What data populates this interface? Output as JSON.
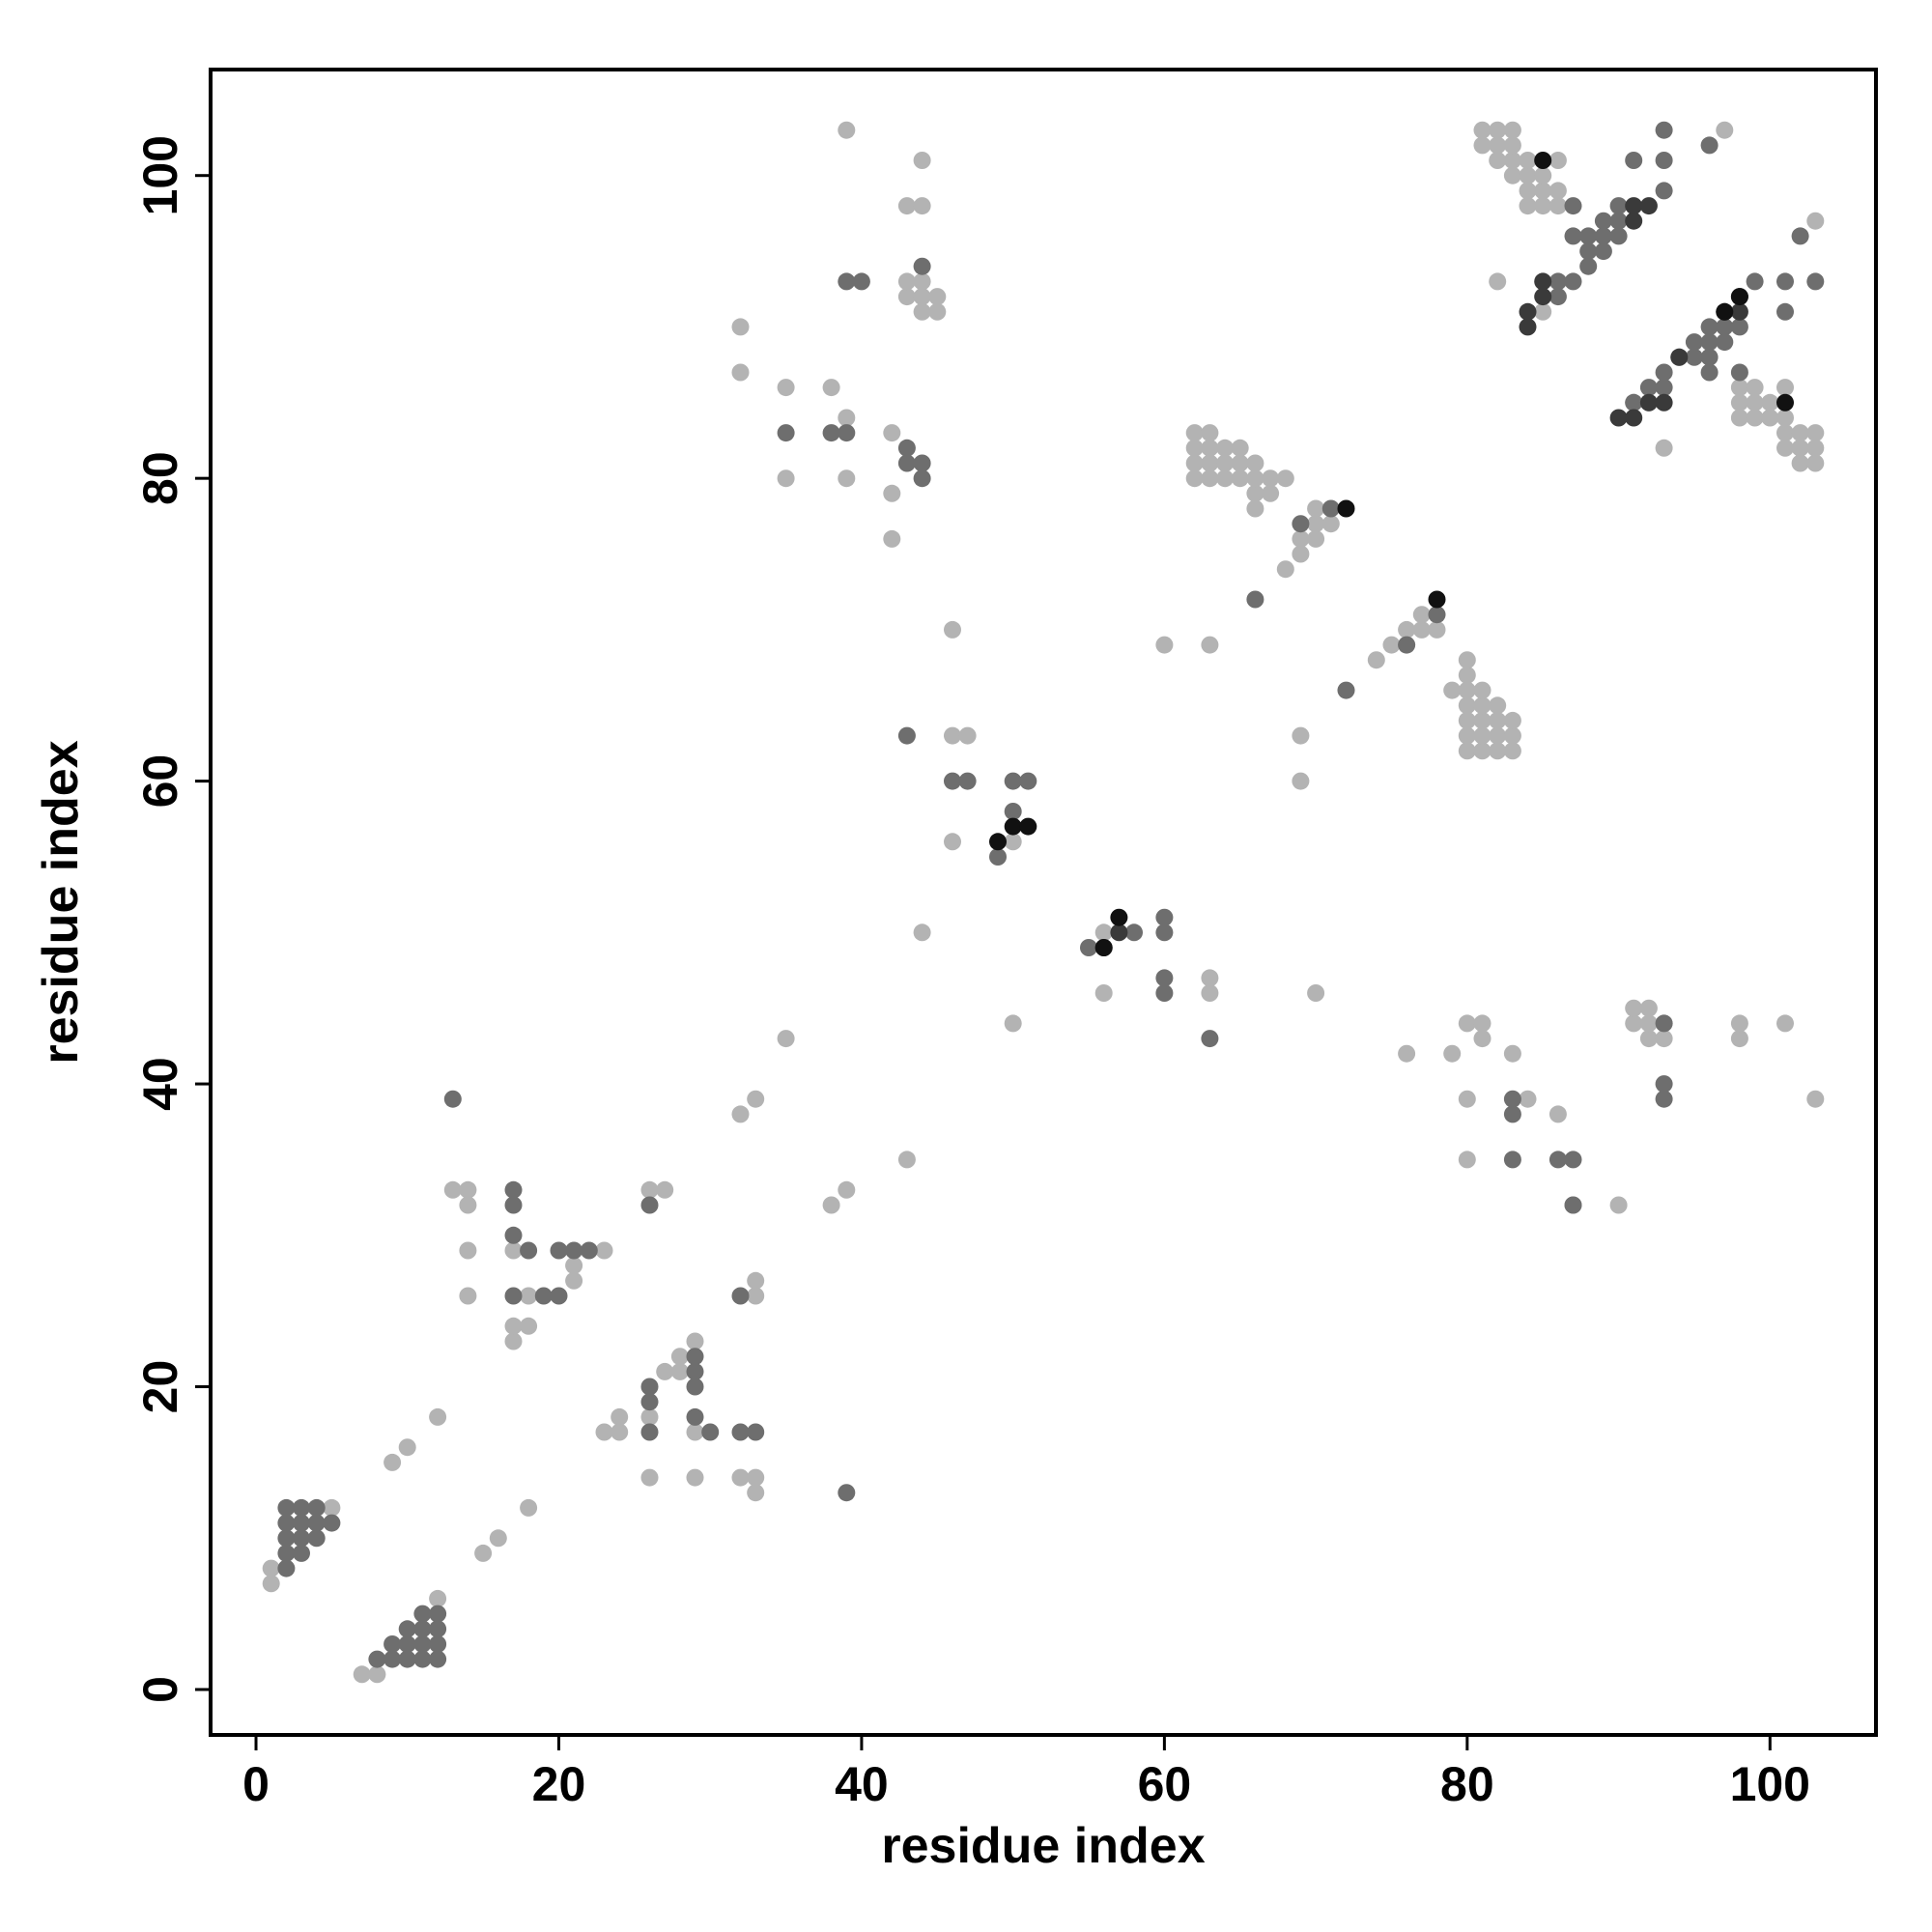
{
  "chart_data": {
    "type": "scatter",
    "title": "",
    "xlabel": "residue index",
    "ylabel": "residue index",
    "xlim": [
      -3,
      107
    ],
    "ylim": [
      -3,
      107
    ],
    "xticks": [
      0,
      20,
      40,
      60,
      80,
      100
    ],
    "yticks": [
      0,
      20,
      40,
      60,
      80,
      100
    ],
    "grid": false,
    "legend": "none",
    "colors": {
      "light": "#b3b3b3",
      "medium": "#6e6e6e",
      "dark": "#3a3a3a",
      "black": "#111111"
    },
    "points": {
      "light": [
        [
          1,
          7
        ],
        [
          1,
          8
        ],
        [
          5,
          12
        ],
        [
          7,
          1
        ],
        [
          8,
          1
        ],
        [
          9,
          15
        ],
        [
          10,
          16
        ],
        [
          12,
          6
        ],
        [
          12,
          18
        ],
        [
          13,
          33
        ],
        [
          14,
          26
        ],
        [
          14,
          29
        ],
        [
          14,
          32
        ],
        [
          14,
          33
        ],
        [
          15,
          9
        ],
        [
          16,
          10
        ],
        [
          17,
          23
        ],
        [
          17,
          24
        ],
        [
          17,
          29
        ],
        [
          18,
          12
        ],
        [
          18,
          24
        ],
        [
          18,
          26
        ],
        [
          21,
          27
        ],
        [
          21,
          28
        ],
        [
          23,
          29
        ],
        [
          23,
          17
        ],
        [
          24,
          17
        ],
        [
          24,
          18
        ],
        [
          26,
          14
        ],
        [
          26,
          18
        ],
        [
          26,
          33
        ],
        [
          27,
          21
        ],
        [
          27,
          33
        ],
        [
          28,
          21
        ],
        [
          28,
          22
        ],
        [
          29,
          14
        ],
        [
          29,
          17
        ],
        [
          29,
          23
        ],
        [
          32,
          14
        ],
        [
          32,
          38
        ],
        [
          32,
          87
        ],
        [
          32,
          90
        ],
        [
          33,
          13
        ],
        [
          33,
          14
        ],
        [
          33,
          26
        ],
        [
          33,
          27
        ],
        [
          33,
          39
        ],
        [
          35,
          43
        ],
        [
          35,
          80
        ],
        [
          35,
          86
        ],
        [
          38,
          32
        ],
        [
          38,
          86
        ],
        [
          39,
          33
        ],
        [
          39,
          80
        ],
        [
          39,
          84
        ],
        [
          39,
          103
        ],
        [
          42,
          76
        ],
        [
          42,
          79
        ],
        [
          42,
          83
        ],
        [
          43,
          35
        ],
        [
          43,
          92
        ],
        [
          43,
          93
        ],
        [
          43,
          98
        ],
        [
          44,
          50
        ],
        [
          44,
          91
        ],
        [
          44,
          92
        ],
        [
          44,
          93
        ],
        [
          44,
          98
        ],
        [
          44,
          101
        ],
        [
          45,
          91
        ],
        [
          45,
          92
        ],
        [
          46,
          56
        ],
        [
          46,
          63
        ],
        [
          46,
          70
        ],
        [
          47,
          63
        ],
        [
          50,
          44
        ],
        [
          50,
          56
        ],
        [
          56,
          46
        ],
        [
          56,
          50
        ],
        [
          60,
          69
        ],
        [
          62,
          80
        ],
        [
          62,
          81
        ],
        [
          62,
          82
        ],
        [
          62,
          83
        ],
        [
          63,
          46
        ],
        [
          63,
          47
        ],
        [
          63,
          69
        ],
        [
          63,
          80
        ],
        [
          63,
          81
        ],
        [
          63,
          82
        ],
        [
          63,
          83
        ],
        [
          64,
          80
        ],
        [
          64,
          81
        ],
        [
          64,
          82
        ],
        [
          65,
          80
        ],
        [
          65,
          81
        ],
        [
          65,
          82
        ],
        [
          66,
          78
        ],
        [
          66,
          79
        ],
        [
          66,
          80
        ],
        [
          66,
          81
        ],
        [
          67,
          79
        ],
        [
          67,
          80
        ],
        [
          68,
          74
        ],
        [
          68,
          80
        ],
        [
          69,
          60
        ],
        [
          69,
          63
        ],
        [
          69,
          75
        ],
        [
          69,
          76
        ],
        [
          70,
          46
        ],
        [
          70,
          76
        ],
        [
          70,
          77
        ],
        [
          70,
          78
        ],
        [
          71,
          77
        ],
        [
          74,
          68
        ],
        [
          75,
          69
        ],
        [
          76,
          42
        ],
        [
          76,
          69
        ],
        [
          76,
          70
        ],
        [
          77,
          70
        ],
        [
          77,
          71
        ],
        [
          78,
          70
        ],
        [
          79,
          66
        ],
        [
          79,
          42
        ],
        [
          80,
          35
        ],
        [
          80,
          39
        ],
        [
          80,
          44
        ],
        [
          80,
          62
        ],
        [
          80,
          63
        ],
        [
          80,
          64
        ],
        [
          80,
          65
        ],
        [
          80,
          66
        ],
        [
          80,
          67
        ],
        [
          80,
          68
        ],
        [
          81,
          44
        ],
        [
          81,
          43
        ],
        [
          81,
          62
        ],
        [
          81,
          63
        ],
        [
          81,
          64
        ],
        [
          81,
          65
        ],
        [
          81,
          66
        ],
        [
          81,
          102
        ],
        [
          81,
          103
        ],
        [
          82,
          62
        ],
        [
          82,
          63
        ],
        [
          82,
          64
        ],
        [
          82,
          65
        ],
        [
          82,
          93
        ],
        [
          82,
          101
        ],
        [
          82,
          102
        ],
        [
          82,
          103
        ],
        [
          83,
          42
        ],
        [
          83,
          62
        ],
        [
          83,
          63
        ],
        [
          83,
          64
        ],
        [
          83,
          100
        ],
        [
          83,
          101
        ],
        [
          83,
          102
        ],
        [
          83,
          103
        ],
        [
          84,
          39
        ],
        [
          84,
          98
        ],
        [
          84,
          99
        ],
        [
          84,
          100
        ],
        [
          84,
          101
        ],
        [
          85,
          91
        ],
        [
          85,
          98
        ],
        [
          85,
          99
        ],
        [
          85,
          100
        ],
        [
          86,
          38
        ],
        [
          86,
          98
        ],
        [
          86,
          99
        ],
        [
          86,
          101
        ],
        [
          87,
          32
        ],
        [
          90,
          32
        ],
        [
          91,
          44
        ],
        [
          91,
          45
        ],
        [
          91,
          85
        ],
        [
          92,
          43
        ],
        [
          92,
          44
        ],
        [
          92,
          45
        ],
        [
          93,
          43
        ],
        [
          93,
          44
        ],
        [
          93,
          82
        ],
        [
          97,
          103
        ],
        [
          98,
          43
        ],
        [
          98,
          44
        ],
        [
          98,
          84
        ],
        [
          98,
          85
        ],
        [
          98,
          86
        ],
        [
          99,
          84
        ],
        [
          99,
          85
        ],
        [
          99,
          86
        ],
        [
          100,
          84
        ],
        [
          100,
          85
        ],
        [
          101,
          44
        ],
        [
          101,
          82
        ],
        [
          101,
          83
        ],
        [
          101,
          84
        ],
        [
          101,
          86
        ],
        [
          102,
          81
        ],
        [
          102,
          82
        ],
        [
          102,
          83
        ],
        [
          103,
          39
        ],
        [
          103,
          81
        ],
        [
          103,
          82
        ],
        [
          103,
          83
        ],
        [
          103,
          97
        ]
      ],
      "medium": [
        [
          2,
          8
        ],
        [
          2,
          9
        ],
        [
          2,
          10
        ],
        [
          2,
          11
        ],
        [
          2,
          12
        ],
        [
          3,
          9
        ],
        [
          3,
          10
        ],
        [
          3,
          11
        ],
        [
          3,
          12
        ],
        [
          4,
          10
        ],
        [
          4,
          11
        ],
        [
          4,
          12
        ],
        [
          5,
          11
        ],
        [
          8,
          2
        ],
        [
          9,
          2
        ],
        [
          9,
          3
        ],
        [
          10,
          2
        ],
        [
          10,
          3
        ],
        [
          10,
          4
        ],
        [
          11,
          2
        ],
        [
          11,
          3
        ],
        [
          11,
          4
        ],
        [
          11,
          5
        ],
        [
          12,
          2
        ],
        [
          12,
          3
        ],
        [
          12,
          4
        ],
        [
          12,
          5
        ],
        [
          13,
          39
        ],
        [
          17,
          26
        ],
        [
          17,
          30
        ],
        [
          17,
          32
        ],
        [
          17,
          33
        ],
        [
          18,
          29
        ],
        [
          19,
          26
        ],
        [
          20,
          26
        ],
        [
          20,
          29
        ],
        [
          21,
          29
        ],
        [
          22,
          29
        ],
        [
          26,
          17
        ],
        [
          26,
          19
        ],
        [
          26,
          20
        ],
        [
          26,
          32
        ],
        [
          29,
          18
        ],
        [
          29,
          20
        ],
        [
          29,
          21
        ],
        [
          29,
          22
        ],
        [
          30,
          17
        ],
        [
          32,
          17
        ],
        [
          32,
          26
        ],
        [
          33,
          17
        ],
        [
          35,
          83
        ],
        [
          38,
          83
        ],
        [
          39,
          13
        ],
        [
          39,
          83
        ],
        [
          39,
          93
        ],
        [
          40,
          93
        ],
        [
          43,
          63
        ],
        [
          43,
          82
        ],
        [
          43,
          81
        ],
        [
          44,
          80
        ],
        [
          44,
          81
        ],
        [
          44,
          94
        ],
        [
          46,
          60
        ],
        [
          47,
          60
        ],
        [
          49,
          55
        ],
        [
          50,
          58
        ],
        [
          50,
          60
        ],
        [
          51,
          60
        ],
        [
          55,
          49
        ],
        [
          58,
          50
        ],
        [
          60,
          46
        ],
        [
          60,
          47
        ],
        [
          60,
          50
        ],
        [
          60,
          51
        ],
        [
          63,
          43
        ],
        [
          66,
          72
        ],
        [
          69,
          77
        ],
        [
          71,
          78
        ],
        [
          72,
          66
        ],
        [
          76,
          69
        ],
        [
          78,
          71
        ],
        [
          83,
          35
        ],
        [
          83,
          38
        ],
        [
          83,
          39
        ],
        [
          86,
          35
        ],
        [
          86,
          92
        ],
        [
          86,
          93
        ],
        [
          87,
          32
        ],
        [
          87,
          35
        ],
        [
          87,
          93
        ],
        [
          87,
          96
        ],
        [
          87,
          98
        ],
        [
          88,
          94
        ],
        [
          88,
          95
        ],
        [
          88,
          96
        ],
        [
          89,
          95
        ],
        [
          89,
          96
        ],
        [
          89,
          97
        ],
        [
          90,
          96
        ],
        [
          90,
          97
        ],
        [
          90,
          98
        ],
        [
          91,
          85
        ],
        [
          91,
          101
        ],
        [
          92,
          85
        ],
        [
          92,
          86
        ],
        [
          93,
          39
        ],
        [
          93,
          40
        ],
        [
          93,
          44
        ],
        [
          93,
          86
        ],
        [
          93,
          87
        ],
        [
          93,
          99
        ],
        [
          93,
          101
        ],
        [
          93,
          103
        ],
        [
          94,
          88
        ],
        [
          95,
          88
        ],
        [
          95,
          89
        ],
        [
          96,
          87
        ],
        [
          96,
          88
        ],
        [
          96,
          89
        ],
        [
          96,
          90
        ],
        [
          96,
          102
        ],
        [
          97,
          89
        ],
        [
          97,
          90
        ],
        [
          98,
          87
        ],
        [
          98,
          90
        ],
        [
          99,
          93
        ],
        [
          101,
          91
        ],
        [
          101,
          93
        ],
        [
          102,
          96
        ],
        [
          103,
          93
        ]
      ],
      "dark": [
        [
          56,
          49
        ],
        [
          57,
          50
        ],
        [
          84,
          90
        ],
        [
          84,
          91
        ],
        [
          85,
          92
        ],
        [
          85,
          93
        ],
        [
          90,
          84
        ],
        [
          91,
          84
        ],
        [
          91,
          97
        ],
        [
          91,
          98
        ],
        [
          92,
          85
        ],
        [
          92,
          98
        ],
        [
          93,
          85
        ],
        [
          94,
          88
        ],
        [
          97,
          91
        ],
        [
          98,
          91
        ],
        [
          98,
          92
        ]
      ],
      "black": [
        [
          49,
          56
        ],
        [
          50,
          57
        ],
        [
          51,
          57
        ],
        [
          56,
          49
        ],
        [
          57,
          51
        ],
        [
          72,
          78
        ],
        [
          78,
          72
        ],
        [
          85,
          101
        ],
        [
          97,
          91
        ],
        [
          98,
          92
        ],
        [
          101,
          85
        ]
      ]
    }
  }
}
